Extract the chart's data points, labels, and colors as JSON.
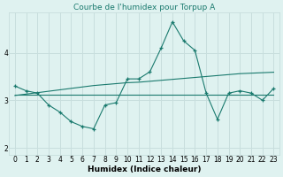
{
  "title": "Courbe de l'humidex pour Torpup A",
  "xlabel": "Humidex (Indice chaleur)",
  "bg_color": "#dff2f0",
  "grid_color": "#c8dedd",
  "line_color": "#1a7a6e",
  "x": [
    0,
    1,
    2,
    3,
    4,
    5,
    6,
    7,
    8,
    9,
    10,
    11,
    12,
    13,
    14,
    15,
    16,
    17,
    18,
    19,
    20,
    21,
    22,
    23
  ],
  "series1": [
    3.3,
    3.2,
    3.15,
    2.9,
    2.75,
    2.55,
    2.45,
    2.4,
    2.9,
    2.95,
    3.45,
    3.45,
    3.6,
    4.1,
    4.65,
    4.25,
    4.05,
    3.15,
    2.6,
    3.15,
    3.2,
    3.15,
    3.0,
    3.25
  ],
  "series2_slope": [
    3.1,
    3.13,
    3.16,
    3.19,
    3.22,
    3.25,
    3.28,
    3.31,
    3.33,
    3.35,
    3.37,
    3.38,
    3.4,
    3.42,
    3.44,
    3.46,
    3.48,
    3.5,
    3.52,
    3.54,
    3.56,
    3.57,
    3.58,
    3.59
  ],
  "series3_flat": [
    3.12,
    3.12,
    3.12,
    3.12,
    3.12,
    3.12,
    3.12,
    3.12,
    3.12,
    3.12,
    3.12,
    3.12,
    3.12,
    3.12,
    3.12,
    3.12,
    3.12,
    3.12,
    3.12,
    3.12,
    3.12,
    3.12,
    3.12,
    3.12
  ],
  "ylim": [
    1.85,
    4.85
  ],
  "yticks": [
    2,
    3,
    4
  ],
  "title_fontsize": 6.5,
  "xlabel_fontsize": 6.5,
  "tick_fontsize": 5.5
}
